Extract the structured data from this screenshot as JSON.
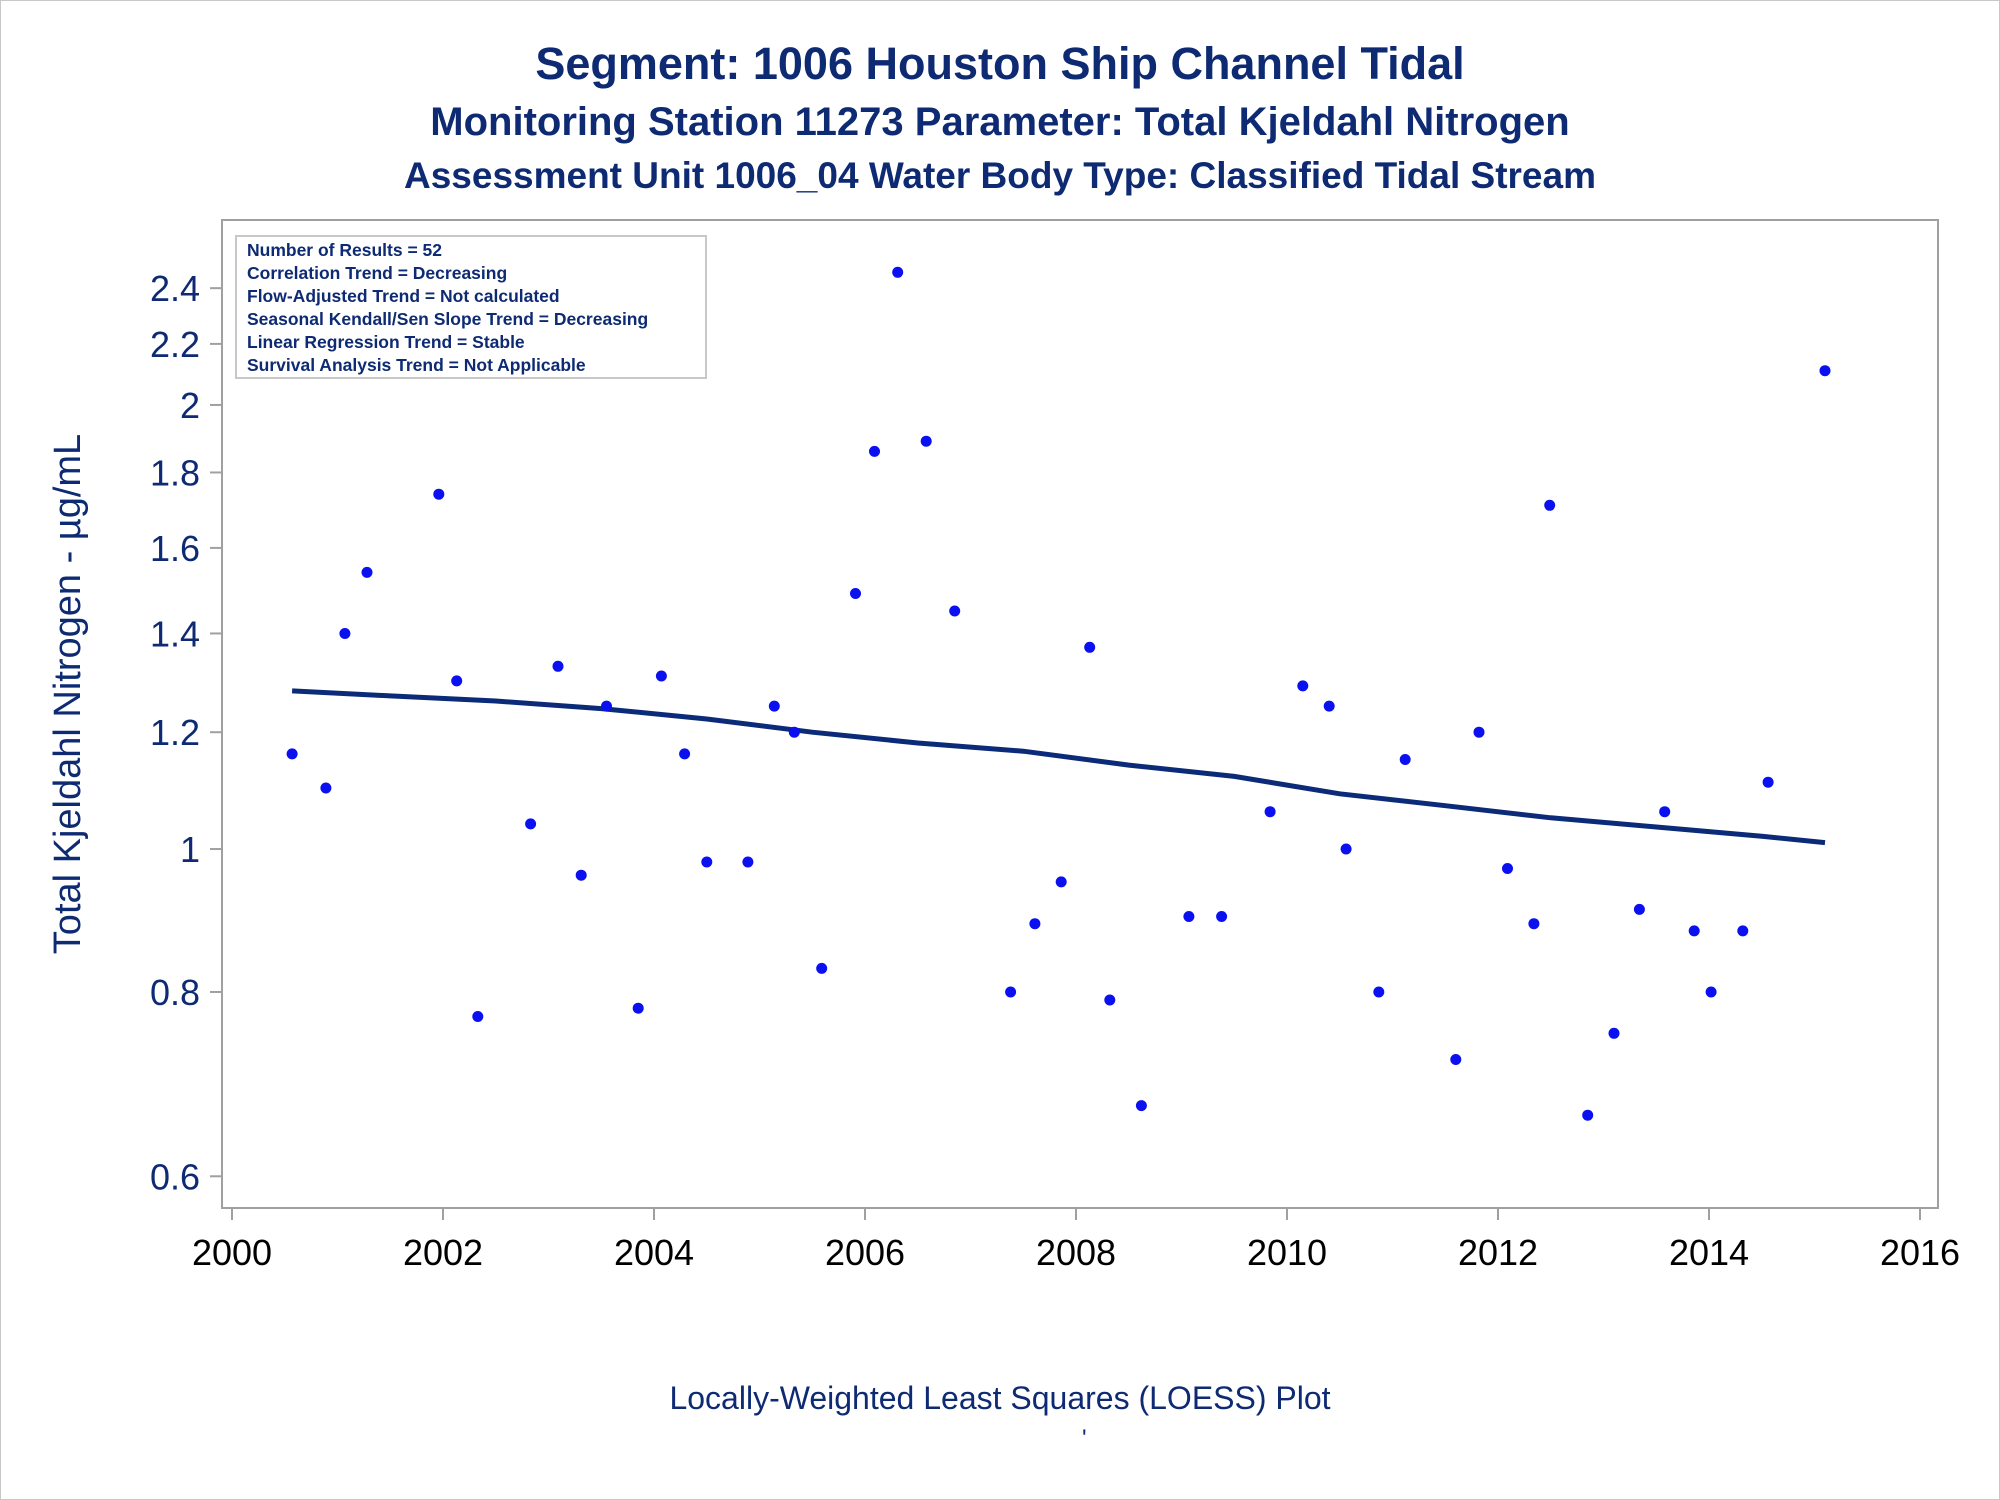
{
  "title": "Segment: 1006  Houston Ship Channel Tidal",
  "subtitles": [
    "Monitoring Station 11273 Parameter: Total Kjeldahl Nitrogen",
    "Assessment Unit 1006_04   Water Body Type: Classified Tidal Stream"
  ],
  "footnote": "Locally-Weighted Least Squares (LOESS) Plot",
  "footnote_mark": "'",
  "colors": {
    "text": "#0d2a73",
    "points": "#0a10f0",
    "trend": "#0b2a78",
    "axis": "#a0a0a0"
  },
  "chart_data": {
    "type": "scatter",
    "ylabel": "Total Kjeldahl Nitrogen -  µg/mL",
    "xlabel": "",
    "x_ticks": [
      2000,
      2002,
      2004,
      2006,
      2008,
      2010,
      2012,
      2014,
      2016
    ],
    "y_ticks": [
      0.6,
      0.8,
      1,
      1.2,
      1.4,
      1.6,
      1.8,
      2,
      2.2,
      2.4
    ],
    "y_tick_labels": [
      "0.6",
      "0.8",
      "1",
      "1.2",
      "1.4",
      "1.6",
      "1.8",
      "2",
      "2.2",
      "2.4"
    ],
    "x_tick_labels": [
      "2000",
      "2002",
      "2004",
      "2006",
      "2008",
      "2010",
      "2012",
      "2014",
      "2016"
    ],
    "xlim": [
      2000,
      2016
    ],
    "ylim": [
      0.58,
      2.5
    ],
    "y_scale": "log",
    "grid": false,
    "legend_position": "top-left",
    "stats_box": [
      "Number of Results = 52",
      "Correlation Trend = Decreasing",
      "Flow-Adjusted Trend = Not calculated",
      "Seasonal Kendall/Sen Slope Trend = Decreasing",
      "Linear Regression Trend = Stable",
      "Survival Analysis Trend = Not Applicable"
    ],
    "points": [
      {
        "x": 2000.57,
        "y": 1.16
      },
      {
        "x": 2000.89,
        "y": 1.1
      },
      {
        "x": 2001.07,
        "y": 1.4
      },
      {
        "x": 2001.28,
        "y": 1.54
      },
      {
        "x": 2001.96,
        "y": 1.74
      },
      {
        "x": 2002.13,
        "y": 1.3
      },
      {
        "x": 2002.33,
        "y": 0.77
      },
      {
        "x": 2002.83,
        "y": 1.04
      },
      {
        "x": 2003.09,
        "y": 1.33
      },
      {
        "x": 2003.31,
        "y": 0.96
      },
      {
        "x": 2003.55,
        "y": 1.25
      },
      {
        "x": 2003.85,
        "y": 0.78
      },
      {
        "x": 2004.07,
        "y": 1.31
      },
      {
        "x": 2004.29,
        "y": 1.16
      },
      {
        "x": 2004.5,
        "y": 0.98
      },
      {
        "x": 2004.89,
        "y": 0.98
      },
      {
        "x": 2005.14,
        "y": 1.25
      },
      {
        "x": 2005.33,
        "y": 1.2
      },
      {
        "x": 2005.59,
        "y": 0.83
      },
      {
        "x": 2005.91,
        "y": 1.49
      },
      {
        "x": 2006.09,
        "y": 1.86
      },
      {
        "x": 2006.31,
        "y": 2.46
      },
      {
        "x": 2006.58,
        "y": 1.89
      },
      {
        "x": 2006.85,
        "y": 1.45
      },
      {
        "x": 2007.38,
        "y": 0.8
      },
      {
        "x": 2007.61,
        "y": 0.89
      },
      {
        "x": 2007.86,
        "y": 0.95
      },
      {
        "x": 2008.13,
        "y": 1.37
      },
      {
        "x": 2008.32,
        "y": 0.79
      },
      {
        "x": 2008.62,
        "y": 0.67
      },
      {
        "x": 2009.07,
        "y": 0.9
      },
      {
        "x": 2009.38,
        "y": 0.9
      },
      {
        "x": 2009.84,
        "y": 1.06
      },
      {
        "x": 2010.15,
        "y": 1.29
      },
      {
        "x": 2010.4,
        "y": 1.25
      },
      {
        "x": 2010.56,
        "y": 1.0
      },
      {
        "x": 2010.87,
        "y": 0.8
      },
      {
        "x": 2011.12,
        "y": 1.15
      },
      {
        "x": 2011.6,
        "y": 0.72
      },
      {
        "x": 2011.82,
        "y": 1.2
      },
      {
        "x": 2012.09,
        "y": 0.97
      },
      {
        "x": 2012.34,
        "y": 0.89
      },
      {
        "x": 2012.49,
        "y": 1.71
      },
      {
        "x": 2012.85,
        "y": 0.66
      },
      {
        "x": 2013.1,
        "y": 0.75
      },
      {
        "x": 2013.34,
        "y": 0.91
      },
      {
        "x": 2013.58,
        "y": 1.06
      },
      {
        "x": 2013.86,
        "y": 0.88
      },
      {
        "x": 2014.02,
        "y": 0.8
      },
      {
        "x": 2014.32,
        "y": 0.88
      },
      {
        "x": 2014.56,
        "y": 1.11
      },
      {
        "x": 2015.1,
        "y": 2.11
      }
    ],
    "trend_line": {
      "x": [
        2000.57,
        2001.5,
        2002.5,
        2003.5,
        2004.5,
        2005.5,
        2006.5,
        2007.5,
        2008.5,
        2009.5,
        2010.5,
        2011.5,
        2012.5,
        2013.5,
        2014.5,
        2015.1
      ],
      "y": [
        1.28,
        1.27,
        1.26,
        1.245,
        1.225,
        1.2,
        1.18,
        1.165,
        1.14,
        1.12,
        1.09,
        1.07,
        1.05,
        1.035,
        1.02,
        1.01
      ]
    }
  }
}
